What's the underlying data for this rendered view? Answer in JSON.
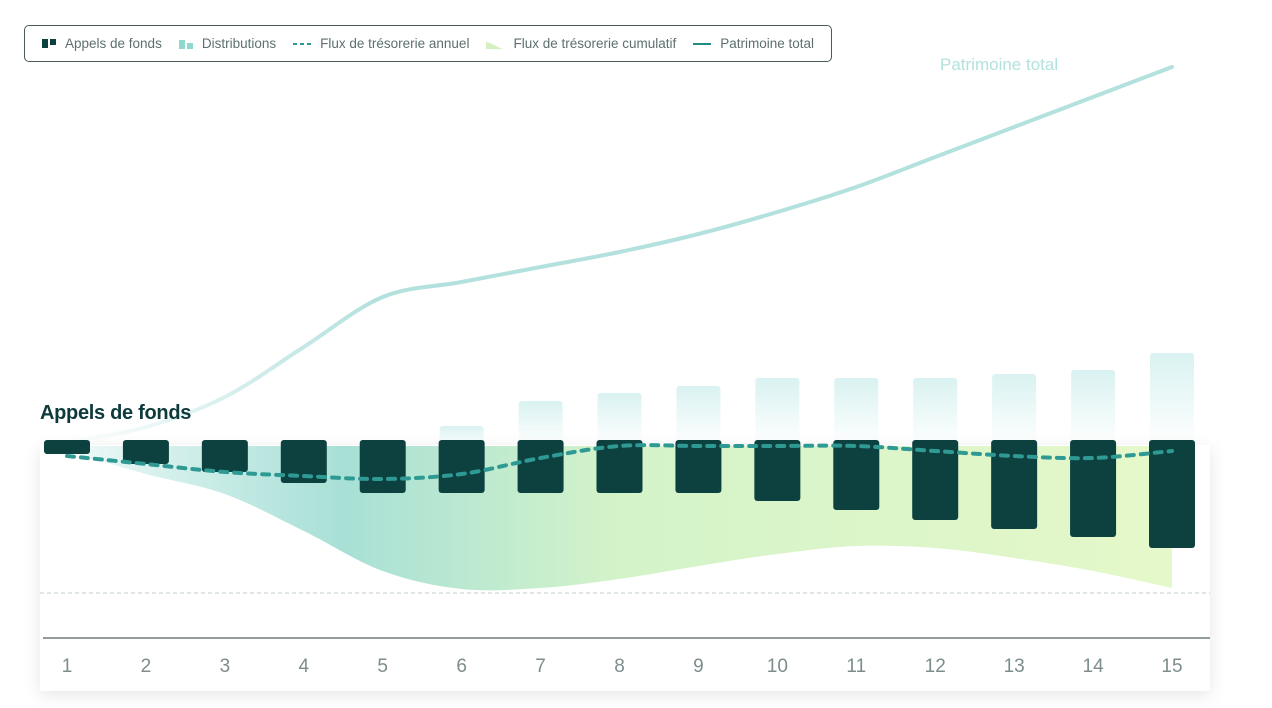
{
  "legend": {
    "items": [
      {
        "label": "Appels de fonds",
        "icon": "capital-calls-icon"
      },
      {
        "label": "Distributions",
        "icon": "distributions-icon"
      },
      {
        "label": "Flux de trésorerie annuel",
        "icon": "annual-cashflow-icon"
      },
      {
        "label": "Flux de trésorerie cumulatif",
        "icon": "cumulative-cashflow-icon"
      },
      {
        "label": "Patrimoine total",
        "icon": "total-wealth-icon"
      }
    ]
  },
  "wealth_label": "Patrimoine total",
  "panel_title": "Appels de fonds",
  "colors": {
    "capital_calls": "#0d4140",
    "distributions": "#b3e6e1",
    "annual_cashflow": "#2f9a94",
    "cumulative_start": "#9fdcd5",
    "cumulative_end": "#e2f7c8",
    "wealth": "#b3e1dd",
    "axis": "#5d6f6f"
  },
  "chart_data": {
    "type": "bar",
    "categories": [
      "1",
      "2",
      "3",
      "4",
      "5",
      "6",
      "7",
      "8",
      "9",
      "10",
      "11",
      "12",
      "13",
      "14",
      "15"
    ],
    "series": [
      {
        "name": "Appels de fonds",
        "type": "bar",
        "values": [
          -8,
          -18,
          -26,
          -37,
          -47,
          -47,
          -47,
          -47,
          -47,
          -55,
          -64,
          -74,
          -83,
          -91,
          -102
        ]
      },
      {
        "name": "Distributions",
        "type": "bar",
        "values": [
          0,
          0,
          0,
          0,
          0,
          20,
          45,
          53,
          60,
          68,
          68,
          68,
          72,
          76,
          93
        ]
      },
      {
        "name": "Flux de trésorerie annuel",
        "type": "line",
        "values": [
          -10,
          -18,
          -26,
          -30,
          -33,
          -28,
          -12,
          0,
          0,
          0,
          0,
          -5,
          -10,
          -12,
          -5
        ]
      },
      {
        "name": "Flux de trésorerie cumulatif",
        "type": "area",
        "values": [
          -5,
          -28,
          -48,
          -85,
          -125,
          -143,
          -142,
          -133,
          -120,
          -108,
          -100,
          -102,
          -112,
          -125,
          -142
        ]
      },
      {
        "name": "Patrimoine total",
        "type": "line",
        "values": [
          10,
          25,
          55,
          105,
          155,
          170,
          185,
          200,
          218,
          240,
          265,
          295,
          325,
          355,
          385
        ]
      }
    ]
  }
}
